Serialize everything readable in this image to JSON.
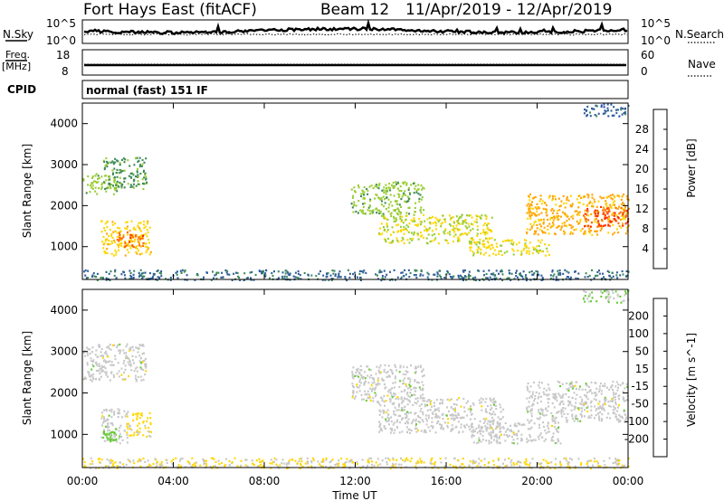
{
  "header": {
    "station": "Fort Hays East (fitACF)",
    "beam": "Beam 12",
    "date_range": "11/Apr/2019 - 12/Apr/2019"
  },
  "strip_labels": {
    "nsky": "N.Sky",
    "nsearch": "N.Search",
    "freq": "Freq.",
    "freq_unit": "[MHz]",
    "nave": "Nave",
    "cpid": "CPID",
    "cpid_value": "normal (fast) 151 IF"
  },
  "noise_ticks": {
    "left": [
      "10^5",
      "10^0"
    ],
    "right": [
      "10^5",
      "10^0"
    ]
  },
  "freq_ticks": {
    "left": [
      "18",
      "8"
    ],
    "right": [
      "60",
      "0"
    ]
  },
  "time_axis": {
    "label": "Time UT",
    "ticks": [
      "00:00",
      "04:00",
      "08:00",
      "12:00",
      "16:00",
      "20:00",
      "00:00"
    ]
  },
  "colors": {
    "axis": "#000000",
    "background": "#ffffff"
  },
  "chart_data": [
    {
      "type": "heatmap",
      "name": "power-panel",
      "ylabel": "Slant Range [km]",
      "yticks": [
        "1000",
        "2000",
        "3000",
        "4000"
      ],
      "ylim": [
        200,
        4500
      ],
      "xlim": [
        0,
        24
      ],
      "colorbar": {
        "label": "Power [dB]",
        "ticks": [
          "4",
          "8",
          "12",
          "16",
          "20",
          "24",
          "28"
        ],
        "range": [
          0,
          32
        ],
        "colors": [
          "#1a1aff",
          "#2040c0",
          "#2f5f9a",
          "#3d8a5a",
          "#9acd32",
          "#ffd700",
          "#ffa500",
          "#ff6a00",
          "#ff2a00",
          "#e00000"
        ]
      },
      "regions": [
        {
          "t0": 0.0,
          "t1": 1.7,
          "r0": 2300,
          "r1": 2800,
          "level": 14
        },
        {
          "t0": 0.9,
          "t1": 2.8,
          "r0": 2400,
          "r1": 3200,
          "level": 12
        },
        {
          "t0": 0.8,
          "t1": 3.0,
          "r0": 800,
          "r1": 1650,
          "level": 18
        },
        {
          "t0": 1.5,
          "t1": 2.7,
          "r0": 1000,
          "r1": 1400,
          "level": 24
        },
        {
          "t0": 0.0,
          "t1": 24.0,
          "r0": 200,
          "r1": 450,
          "level": 9
        },
        {
          "t0": 11.8,
          "t1": 15.0,
          "r0": 1800,
          "r1": 2600,
          "level": 14
        },
        {
          "t0": 13.0,
          "t1": 18.0,
          "r0": 1100,
          "r1": 1800,
          "level": 16
        },
        {
          "t0": 17.0,
          "t1": 20.5,
          "r0": 800,
          "r1": 1200,
          "level": 17
        },
        {
          "t0": 19.5,
          "t1": 24.0,
          "r0": 1300,
          "r1": 2300,
          "level": 20
        },
        {
          "t0": 22.0,
          "t1": 24.0,
          "r0": 1500,
          "r1": 2000,
          "level": 26
        },
        {
          "t0": 22.0,
          "t1": 24.0,
          "r0": 4200,
          "r1": 4500,
          "level": 8
        }
      ]
    },
    {
      "type": "heatmap",
      "name": "velocity-panel",
      "ylabel": "Slant Range [km]",
      "yticks": [
        "1000",
        "2000",
        "3000",
        "4000"
      ],
      "ylim": [
        200,
        4500
      ],
      "xlim": [
        0,
        24
      ],
      "colorbar": {
        "label": "Velocity [m s^-1]",
        "ticks": [
          "200",
          "100",
          "50",
          "15",
          "-15",
          "-50",
          "-100",
          "-200"
        ],
        "range": [
          -250,
          250
        ],
        "colors": [
          "#1a1acd",
          "#2f5f9a",
          "#3d8a5a",
          "#66cc33",
          "#c8c8c8",
          "#ffd700",
          "#ffa500",
          "#ff6a00",
          "#e00000"
        ]
      },
      "regions": [
        {
          "t0": 0.0,
          "t1": 2.8,
          "r0": 2300,
          "r1": 3200,
          "level": 0
        },
        {
          "t0": 0.8,
          "t1": 2.0,
          "r0": 800,
          "r1": 1650,
          "level": 0
        },
        {
          "t0": 0.9,
          "t1": 1.6,
          "r0": 850,
          "r1": 1100,
          "level": -40
        },
        {
          "t0": 1.9,
          "t1": 3.0,
          "r0": 950,
          "r1": 1550,
          "level": 40
        },
        {
          "t0": 0.0,
          "t1": 24.0,
          "r0": 200,
          "r1": 450,
          "level": 30
        },
        {
          "t0": 11.8,
          "t1": 15.0,
          "r0": 1800,
          "r1": 2700,
          "level": 0
        },
        {
          "t0": 13.0,
          "t1": 18.5,
          "r0": 1050,
          "r1": 1900,
          "level": 0
        },
        {
          "t0": 17.0,
          "t1": 21.0,
          "r0": 800,
          "r1": 1300,
          "level": 0
        },
        {
          "t0": 19.5,
          "t1": 24.0,
          "r0": 1300,
          "r1": 2300,
          "level": 0
        },
        {
          "t0": 22.0,
          "t1": 24.0,
          "r0": 4200,
          "r1": 4500,
          "level": -20
        }
      ]
    }
  ]
}
